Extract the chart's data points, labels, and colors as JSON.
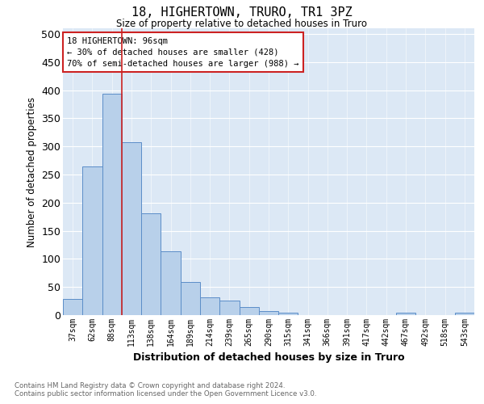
{
  "title": "18, HIGHERTOWN, TRURO, TR1 3PZ",
  "subtitle": "Size of property relative to detached houses in Truro",
  "xlabel": "Distribution of detached houses by size in Truro",
  "ylabel": "Number of detached properties",
  "categories": [
    "37sqm",
    "62sqm",
    "88sqm",
    "113sqm",
    "138sqm",
    "164sqm",
    "189sqm",
    "214sqm",
    "239sqm",
    "265sqm",
    "290sqm",
    "315sqm",
    "341sqm",
    "366sqm",
    "391sqm",
    "417sqm",
    "442sqm",
    "467sqm",
    "492sqm",
    "518sqm",
    "543sqm"
  ],
  "values": [
    29,
    265,
    393,
    307,
    181,
    114,
    59,
    32,
    26,
    15,
    7,
    5,
    0,
    0,
    0,
    0,
    0,
    5,
    0,
    0,
    5
  ],
  "bar_color": "#b8d0ea",
  "bar_edge_color": "#5b8dc8",
  "background_color": "#dce8f5",
  "vline_x": 2.5,
  "vline_color": "#cc2222",
  "annotation_text": "18 HIGHERTOWN: 96sqm\n← 30% of detached houses are smaller (428)\n70% of semi-detached houses are larger (988) →",
  "annotation_box_color": "white",
  "annotation_box_edge_color": "#cc2222",
  "footer_line1": "Contains HM Land Registry data © Crown copyright and database right 2024.",
  "footer_line2": "Contains public sector information licensed under the Open Government Licence v3.0.",
  "ylim": [
    0,
    510
  ],
  "yticks": [
    0,
    50,
    100,
    150,
    200,
    250,
    300,
    350,
    400,
    450,
    500
  ]
}
